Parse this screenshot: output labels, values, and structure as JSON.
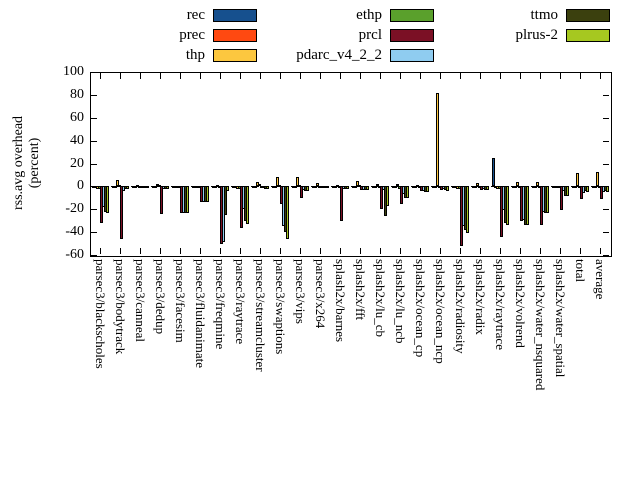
{
  "chart_data": {
    "type": "bar",
    "title": "",
    "ylabel_lines": [
      "rss.avg overhead",
      "(percent)"
    ],
    "xlabel": "",
    "ylim": [
      -60,
      100
    ],
    "yticks": [
      100,
      80,
      60,
      40,
      20,
      0,
      -20,
      -40,
      -60
    ],
    "grid": false,
    "zero_line": "dashed",
    "legend_position": "top",
    "categories": [
      "parsec3/blackscholes",
      "parsec3/bodytrack",
      "parsec3/canneal",
      "parsec3/dedup",
      "parsec3/facesim",
      "parsec3/fluidanimate",
      "parsec3/freqmine",
      "parsec3/raytrace",
      "parsec3/streamcluster",
      "parsec3/swaptions",
      "parsec3/vips",
      "parsec3/x264",
      "splash2x/barnes",
      "splash2x/fft",
      "splash2x/lu_cb",
      "splash2x/lu_ncb",
      "splash2x/ocean_cp",
      "splash2x/ocean_ncp",
      "splash2x/radiosity",
      "splash2x/radix",
      "splash2x/raytrace",
      "splash2x/volrend",
      "splash2x/water_nsquared",
      "splash2x/water_spatial",
      "total",
      "average"
    ],
    "series": [
      {
        "name": "rec",
        "color": "#16508e",
        "values": [
          -1,
          -1,
          0,
          0,
          -1,
          -1,
          -1,
          -1,
          0,
          0,
          0,
          0,
          -1,
          0,
          -1,
          -1,
          -1,
          -1,
          -1,
          0,
          25,
          0,
          -1,
          0,
          -1,
          -1
        ]
      },
      {
        "name": "prec",
        "color": "#ff4911",
        "values": [
          -1,
          -1,
          0,
          0,
          -1,
          -1,
          -1,
          -1,
          0,
          0,
          0,
          0,
          -1,
          0,
          -1,
          -1,
          -1,
          -1,
          -1,
          -1,
          0,
          0,
          -1,
          -1,
          -1,
          -1
        ]
      },
      {
        "name": "thp",
        "color": "#fcc73f",
        "values": [
          -2,
          6,
          1,
          2,
          -1,
          -1,
          1,
          -2,
          4,
          8,
          8,
          3,
          1,
          5,
          2,
          2,
          1,
          82,
          -2,
          3,
          -2,
          4,
          4,
          0,
          12,
          13
        ]
      },
      {
        "name": "ethp",
        "color": "#5aa02c",
        "values": [
          -2,
          1,
          0,
          1,
          -1,
          -1,
          0,
          -2,
          2,
          1,
          1,
          -1,
          0,
          1,
          -1,
          -2,
          -1,
          -1,
          -2,
          0,
          -2,
          0,
          -1,
          -1,
          -1,
          -1
        ]
      },
      {
        "name": "prcl",
        "color": "#7b1025",
        "values": [
          -32,
          -46,
          -1,
          -24,
          -23,
          -14,
          -50,
          -36,
          -1,
          -15,
          -10,
          -1,
          -30,
          -3,
          -20,
          -15,
          -4,
          -3,
          -52,
          -3,
          -44,
          -30,
          -34,
          -21,
          -11,
          -11
        ]
      },
      {
        "name": "pdarc_v4_2_2",
        "color": "#8fccf0",
        "values": [
          -18,
          -4,
          -1,
          -2,
          -23,
          -14,
          -49,
          -20,
          -1,
          -35,
          -3,
          -1,
          -2,
          -3,
          -3,
          -7,
          -4,
          -2,
          -35,
          -2,
          -21,
          -29,
          -22,
          -4,
          -6,
          -5
        ]
      },
      {
        "name": "ttmo",
        "color": "#3b400e",
        "values": [
          -22,
          -2,
          -1,
          -2,
          -23,
          -14,
          -25,
          -30,
          -2,
          -40,
          -4,
          -1,
          -2,
          -3,
          -26,
          -10,
          -5,
          -3,
          -38,
          -3,
          -32,
          -34,
          -23,
          -8,
          -4,
          -4
        ]
      },
      {
        "name": "plrus-2",
        "color": "#a6c820",
        "values": [
          -23,
          -2,
          -1,
          -2,
          -23,
          -14,
          -4,
          -33,
          -2,
          -46,
          -4,
          -1,
          -2,
          -3,
          -17,
          -10,
          -5,
          -4,
          -41,
          -3,
          -34,
          -34,
          -23,
          -8,
          -5,
          -5
        ]
      }
    ]
  },
  "legend": {
    "columns": [
      [
        {
          "label": "rec",
          "color": "#16508e"
        },
        {
          "label": "prec",
          "color": "#ff4911"
        },
        {
          "label": "thp",
          "color": "#fcc73f"
        }
      ],
      [
        {
          "label": "ethp",
          "color": "#5aa02c"
        },
        {
          "label": "prcl",
          "color": "#7b1025"
        },
        {
          "label": "pdarc_v4_2_2",
          "color": "#8fccf0"
        }
      ],
      [
        {
          "label": "ttmo",
          "color": "#3b400e"
        },
        {
          "label": "plrus-2",
          "color": "#a6c820"
        }
      ]
    ]
  }
}
